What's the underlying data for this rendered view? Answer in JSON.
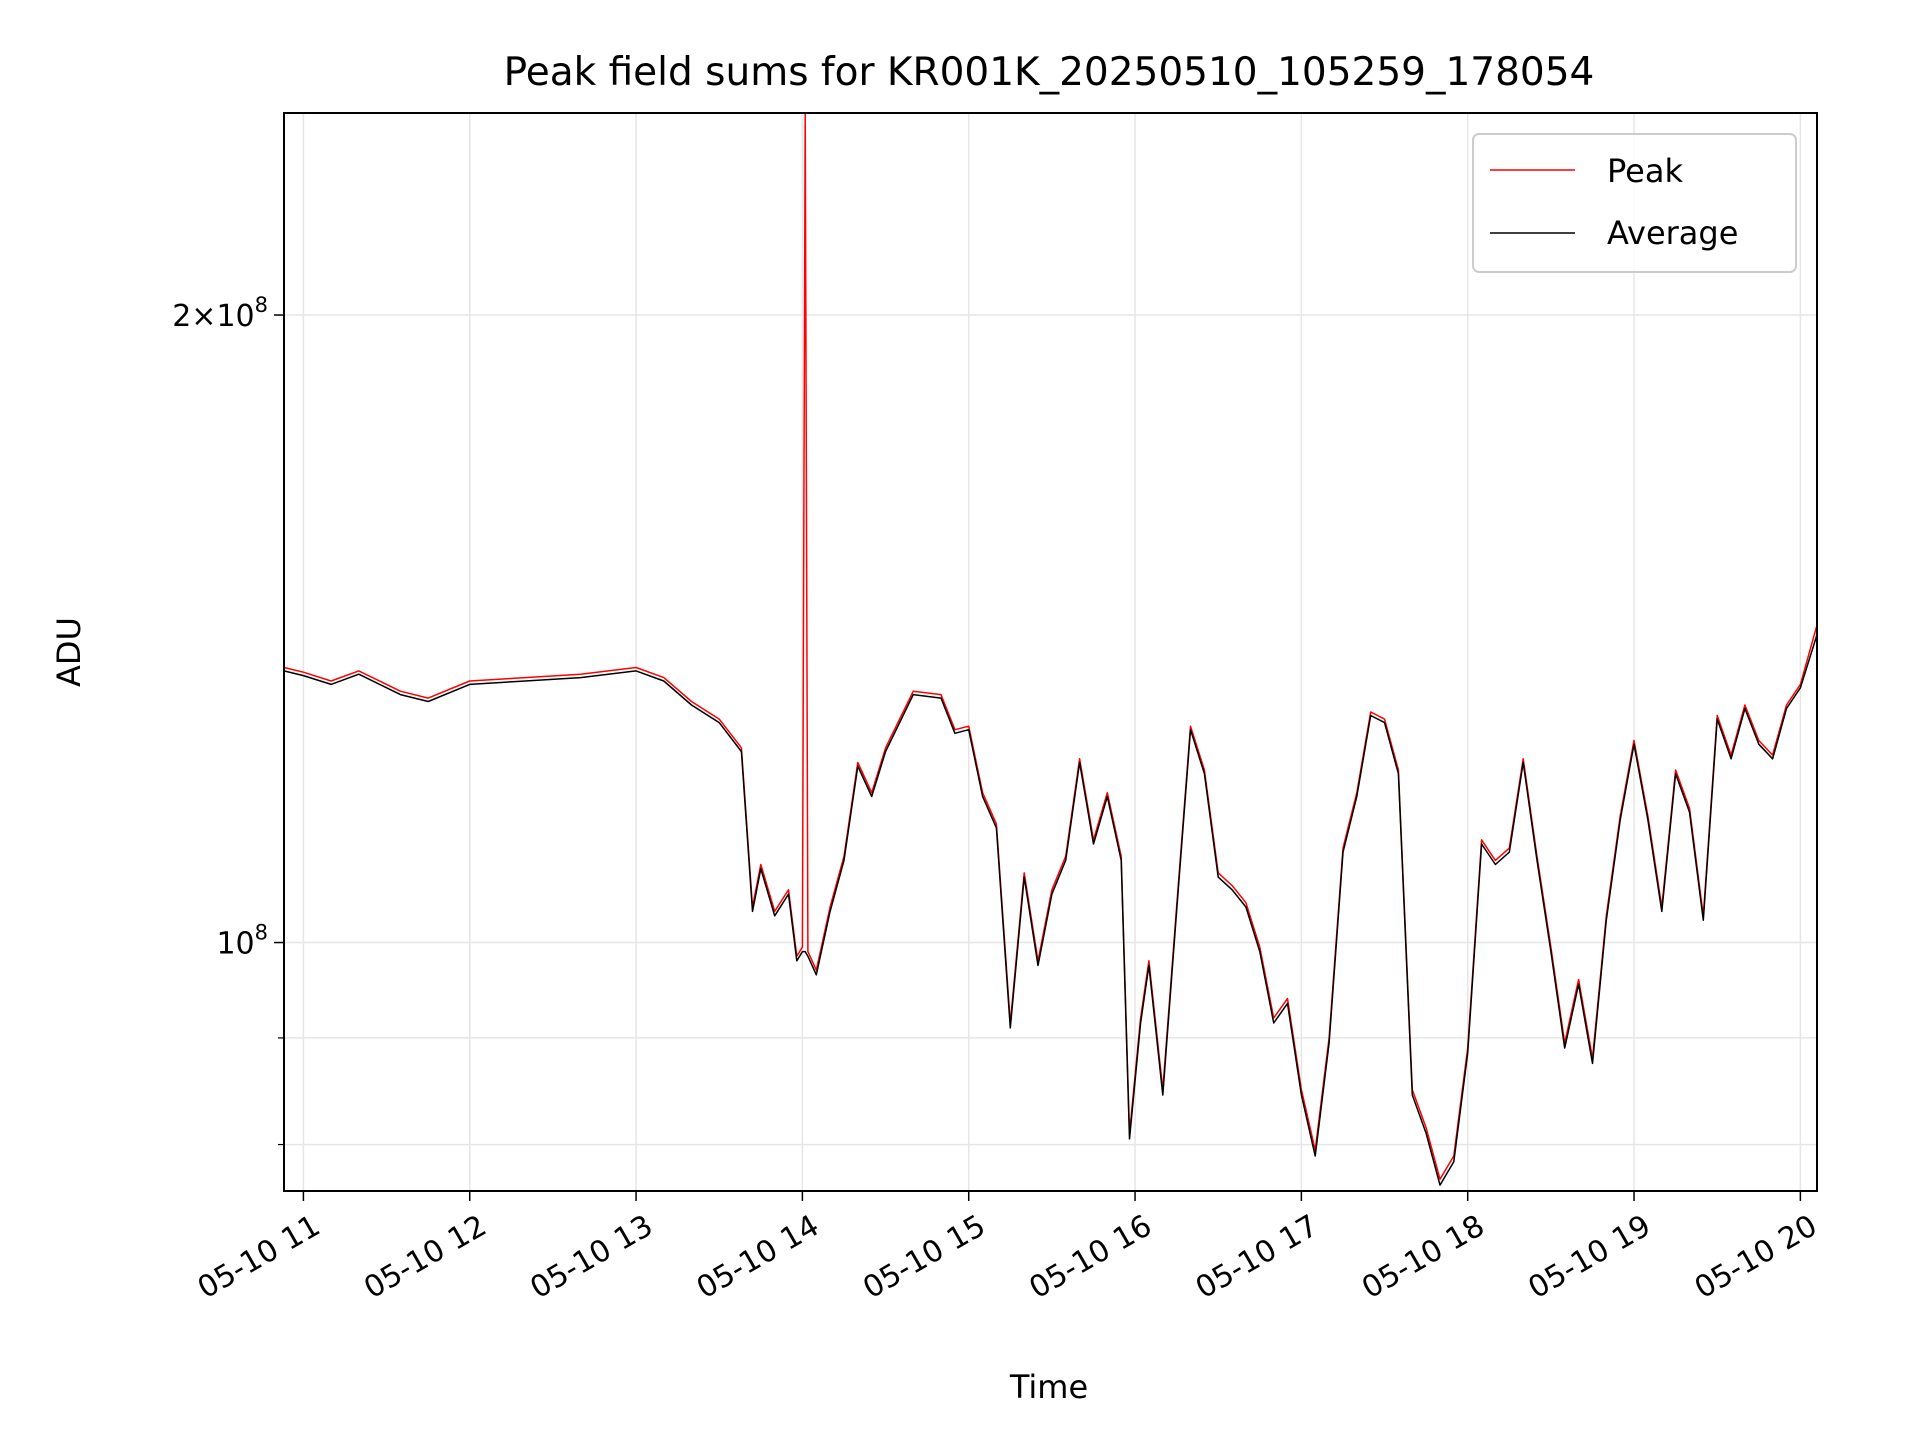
{
  "chart_data": {
    "type": "line",
    "title": "Peak field sums for KR001K_20250510_105259_178054",
    "xlabel": "Time",
    "ylabel": "ADU",
    "yscale": "log",
    "xlim": [
      "05-10 10:53",
      "05-10 20:06"
    ],
    "ylim": [
      76000000,
      250000000
    ],
    "grid": true,
    "legend_position": "upper right",
    "x_ticks": [
      "05-10 11",
      "05-10 12",
      "05-10 13",
      "05-10 14",
      "05-10 15",
      "05-10 16",
      "05-10 17",
      "05-10 18",
      "05-10 19",
      "05-10 20"
    ],
    "y_tick_labels": [
      {
        "value": 100000000,
        "mantissa": "",
        "exponent": "8"
      },
      {
        "value": 200000000,
        "mantissa": "2",
        "exponent": "8"
      }
    ],
    "y_minor_ticks": [
      80000000,
      90000000
    ],
    "series": [
      {
        "name": "Peak",
        "color": "#ff0000",
        "x": [
          "05-10 10:53",
          "05-10 11:00",
          "05-10 11:10",
          "05-10 11:20",
          "05-10 11:35",
          "05-10 11:45",
          "05-10 12:00",
          "05-10 12:20",
          "05-10 12:40",
          "05-10 13:00",
          "05-10 13:10",
          "05-10 13:20",
          "05-10 13:30",
          "05-10 13:38",
          "05-10 13:42",
          "05-10 13:45",
          "05-10 13:50",
          "05-10 13:55",
          "05-10 13:58",
          "05-10 14:00",
          "05-10 14:01",
          "05-10 14:02",
          "05-10 14:05",
          "05-10 14:10",
          "05-10 14:15",
          "05-10 14:20",
          "05-10 14:25",
          "05-10 14:30",
          "05-10 14:40",
          "05-10 14:50",
          "05-10 14:55",
          "05-10 15:00",
          "05-10 15:05",
          "05-10 15:10",
          "05-10 15:15",
          "05-10 15:20",
          "05-10 15:25",
          "05-10 15:30",
          "05-10 15:35",
          "05-10 15:40",
          "05-10 15:45",
          "05-10 15:50",
          "05-10 15:55",
          "05-10 15:58",
          "05-10 16:02",
          "05-10 16:05",
          "05-10 16:10",
          "05-10 16:15",
          "05-10 16:20",
          "05-10 16:25",
          "05-10 16:30",
          "05-10 16:35",
          "05-10 16:40",
          "05-10 16:45",
          "05-10 16:50",
          "05-10 16:55",
          "05-10 17:00",
          "05-10 17:05",
          "05-10 17:10",
          "05-10 17:15",
          "05-10 17:20",
          "05-10 17:25",
          "05-10 17:30",
          "05-10 17:35",
          "05-10 17:40",
          "05-10 17:45",
          "05-10 17:50",
          "05-10 17:55",
          "05-10 18:00",
          "05-10 18:05",
          "05-10 18:10",
          "05-10 18:15",
          "05-10 18:20",
          "05-10 18:25",
          "05-10 18:30",
          "05-10 18:35",
          "05-10 18:40",
          "05-10 18:45",
          "05-10 18:50",
          "05-10 18:55",
          "05-10 19:00",
          "05-10 19:05",
          "05-10 19:10",
          "05-10 19:15",
          "05-10 19:20",
          "05-10 19:25",
          "05-10 19:30",
          "05-10 19:35",
          "05-10 19:40",
          "05-10 19:45",
          "05-10 19:50",
          "05-10 19:55",
          "05-10 20:00",
          "05-10 20:06"
        ],
        "y": [
          135500000,
          134800000,
          133500000,
          135000000,
          132000000,
          131000000,
          133500000,
          134000000,
          134500000,
          135500000,
          134000000,
          130500000,
          128000000,
          124000000,
          104000000,
          109000000,
          103500000,
          106000000,
          98500000,
          99500000,
          250000000,
          99000000,
          97000000,
          104000000,
          110000000,
          122000000,
          118000000,
          124000000,
          132000000,
          131500000,
          126500000,
          127000000,
          118000000,
          114000000,
          91500000,
          108000000,
          98000000,
          106000000,
          110000000,
          122500000,
          112000000,
          118000000,
          110000000,
          81000000,
          92000000,
          98000000,
          85000000,
          104000000,
          127000000,
          121000000,
          108000000,
          106500000,
          104500000,
          99500000,
          92000000,
          94000000,
          85000000,
          79500000,
          90000000,
          111000000,
          118000000,
          129000000,
          128000000,
          121000000,
          85000000,
          81500000,
          77000000,
          79000000,
          89000000,
          112000000,
          109500000,
          111000000,
          122500000,
          110000000,
          99500000,
          89500000,
          96000000,
          88000000,
          103000000,
          115000000,
          125000000,
          115000000,
          104000000,
          121000000,
          116000000,
          103000000,
          128500000,
          123000000,
          130000000,
          125000000,
          123000000,
          130000000,
          133000000,
          142000000
        ]
      },
      {
        "name": "Average",
        "color": "#000000",
        "x": [
          "05-10 10:53",
          "05-10 11:00",
          "05-10 11:10",
          "05-10 11:20",
          "05-10 11:35",
          "05-10 11:45",
          "05-10 12:00",
          "05-10 12:20",
          "05-10 12:40",
          "05-10 13:00",
          "05-10 13:10",
          "05-10 13:20",
          "05-10 13:30",
          "05-10 13:38",
          "05-10 13:42",
          "05-10 13:45",
          "05-10 13:50",
          "05-10 13:55",
          "05-10 13:58",
          "05-10 14:00",
          "05-10 14:01",
          "05-10 14:02",
          "05-10 14:05",
          "05-10 14:10",
          "05-10 14:15",
          "05-10 14:20",
          "05-10 14:25",
          "05-10 14:30",
          "05-10 14:40",
          "05-10 14:50",
          "05-10 14:55",
          "05-10 15:00",
          "05-10 15:05",
          "05-10 15:10",
          "05-10 15:15",
          "05-10 15:20",
          "05-10 15:25",
          "05-10 15:30",
          "05-10 15:35",
          "05-10 15:40",
          "05-10 15:45",
          "05-10 15:50",
          "05-10 15:55",
          "05-10 15:58",
          "05-10 16:02",
          "05-10 16:05",
          "05-10 16:10",
          "05-10 16:15",
          "05-10 16:20",
          "05-10 16:25",
          "05-10 16:30",
          "05-10 16:35",
          "05-10 16:40",
          "05-10 16:45",
          "05-10 16:50",
          "05-10 16:55",
          "05-10 17:00",
          "05-10 17:05",
          "05-10 17:10",
          "05-10 17:15",
          "05-10 17:20",
          "05-10 17:25",
          "05-10 17:30",
          "05-10 17:35",
          "05-10 17:40",
          "05-10 17:45",
          "05-10 17:50",
          "05-10 17:55",
          "05-10 18:00",
          "05-10 18:05",
          "05-10 18:10",
          "05-10 18:15",
          "05-10 18:20",
          "05-10 18:25",
          "05-10 18:30",
          "05-10 18:35",
          "05-10 18:40",
          "05-10 18:45",
          "05-10 18:50",
          "05-10 18:55",
          "05-10 19:00",
          "05-10 19:05",
          "05-10 19:10",
          "05-10 19:15",
          "05-10 19:20",
          "05-10 19:25",
          "05-10 19:30",
          "05-10 19:35",
          "05-10 19:40",
          "05-10 19:45",
          "05-10 19:50",
          "05-10 19:55",
          "05-10 20:00",
          "05-10 20:06"
        ],
        "y": [
          135000000,
          134300000,
          133000000,
          134500000,
          131500000,
          130500000,
          133000000,
          133500000,
          134000000,
          135000000,
          133500000,
          130000000,
          127500000,
          123500000,
          103500000,
          108500000,
          103000000,
          105500000,
          98000000,
          99000000,
          99000000,
          98500000,
          96500000,
          103500000,
          109500000,
          121500000,
          117500000,
          123500000,
          131500000,
          131000000,
          126000000,
          126500000,
          117500000,
          113500000,
          91000000,
          107500000,
          97500000,
          105500000,
          109500000,
          122000000,
          111500000,
          117500000,
          109500000,
          80500000,
          91500000,
          97500000,
          84500000,
          103500000,
          126500000,
          120500000,
          107500000,
          106000000,
          104000000,
          99000000,
          91500000,
          93500000,
          84500000,
          79000000,
          89500000,
          110500000,
          117500000,
          128500000,
          127500000,
          120500000,
          84500000,
          81000000,
          76500000,
          78500000,
          88500000,
          111500000,
          109000000,
          110500000,
          122000000,
          109500000,
          99000000,
          89000000,
          95500000,
          87500000,
          102500000,
          114500000,
          124500000,
          114500000,
          103500000,
          120500000,
          115500000,
          102500000,
          128000000,
          122500000,
          129500000,
          124500000,
          122500000,
          129500000,
          132500000,
          140500000
        ]
      }
    ]
  }
}
